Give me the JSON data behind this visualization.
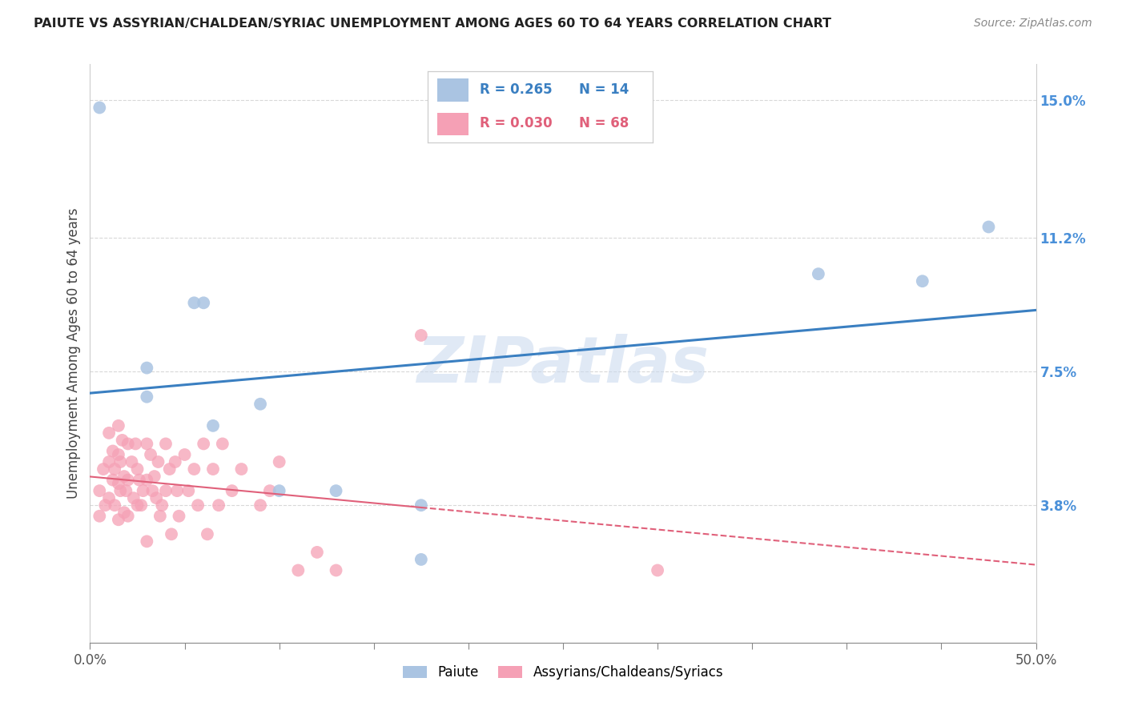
{
  "title": "PAIUTE VS ASSYRIAN/CHALDEAN/SYRIAC UNEMPLOYMENT AMONG AGES 60 TO 64 YEARS CORRELATION CHART",
  "source": "Source: ZipAtlas.com",
  "ylabel": "Unemployment Among Ages 60 to 64 years",
  "xlim": [
    0,
    0.5
  ],
  "ylim": [
    0,
    0.16
  ],
  "xtick_vals": [
    0.0,
    0.05,
    0.1,
    0.15,
    0.2,
    0.25,
    0.3,
    0.35,
    0.4,
    0.45,
    0.5
  ],
  "xtick_labels_show": {
    "0.0": "0.0%",
    "0.50": "50.0%"
  },
  "ytick_labels_right": [
    "3.8%",
    "7.5%",
    "11.2%",
    "15.0%"
  ],
  "ytick_vals_right": [
    0.038,
    0.075,
    0.112,
    0.15
  ],
  "paiute_color": "#aac4e2",
  "assyrian_color": "#f5a0b5",
  "paiute_line_color": "#3a7fc1",
  "assyrian_line_color": "#e0607a",
  "legend_paiute_R": "0.265",
  "legend_paiute_N": "14",
  "legend_assyrian_R": "0.030",
  "legend_assyrian_N": "68",
  "watermark": "ZIPatlas",
  "paiute_x": [
    0.005,
    0.03,
    0.03,
    0.055,
    0.06,
    0.065,
    0.09,
    0.1,
    0.13,
    0.175,
    0.175,
    0.385,
    0.44,
    0.475
  ],
  "paiute_y": [
    0.148,
    0.076,
    0.068,
    0.094,
    0.094,
    0.06,
    0.066,
    0.042,
    0.042,
    0.023,
    0.038,
    0.102,
    0.1,
    0.115
  ],
  "assyrian_x": [
    0.005,
    0.005,
    0.007,
    0.008,
    0.01,
    0.01,
    0.01,
    0.012,
    0.012,
    0.013,
    0.013,
    0.015,
    0.015,
    0.015,
    0.015,
    0.016,
    0.016,
    0.017,
    0.018,
    0.018,
    0.019,
    0.02,
    0.02,
    0.02,
    0.022,
    0.023,
    0.024,
    0.025,
    0.025,
    0.026,
    0.027,
    0.028,
    0.03,
    0.03,
    0.03,
    0.032,
    0.033,
    0.034,
    0.035,
    0.036,
    0.037,
    0.038,
    0.04,
    0.04,
    0.042,
    0.043,
    0.045,
    0.046,
    0.047,
    0.05,
    0.052,
    0.055,
    0.057,
    0.06,
    0.062,
    0.065,
    0.068,
    0.07,
    0.075,
    0.08,
    0.09,
    0.095,
    0.1,
    0.11,
    0.12,
    0.13,
    0.175,
    0.3
  ],
  "assyrian_y": [
    0.042,
    0.035,
    0.048,
    0.038,
    0.058,
    0.05,
    0.04,
    0.053,
    0.045,
    0.048,
    0.038,
    0.06,
    0.052,
    0.044,
    0.034,
    0.05,
    0.042,
    0.056,
    0.046,
    0.036,
    0.042,
    0.055,
    0.045,
    0.035,
    0.05,
    0.04,
    0.055,
    0.048,
    0.038,
    0.045,
    0.038,
    0.042,
    0.055,
    0.045,
    0.028,
    0.052,
    0.042,
    0.046,
    0.04,
    0.05,
    0.035,
    0.038,
    0.055,
    0.042,
    0.048,
    0.03,
    0.05,
    0.042,
    0.035,
    0.052,
    0.042,
    0.048,
    0.038,
    0.055,
    0.03,
    0.048,
    0.038,
    0.055,
    0.042,
    0.048,
    0.038,
    0.042,
    0.05,
    0.02,
    0.025,
    0.02,
    0.085,
    0.02
  ]
}
